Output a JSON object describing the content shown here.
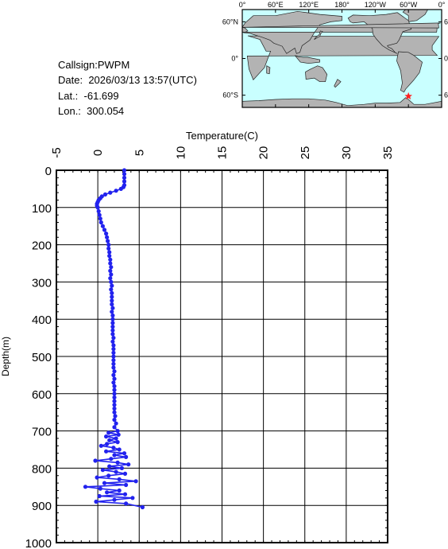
{
  "info": {
    "callsign_label": "Callsign:",
    "callsign": "PWPM",
    "date_label": "Date:",
    "date": "2026/03/13 13:57(UTC)",
    "lat_label": "Lat.:",
    "lat": "-61.699",
    "lon_label": "Lon.:",
    "lon": "300.054"
  },
  "map": {
    "lon_ticks": [
      "0°",
      "60°E",
      "120°E",
      "180°",
      "120°W",
      "60°W",
      "0°"
    ],
    "lat_ticks": [
      "60°N",
      "0°",
      "60°S"
    ],
    "ocean_color": "#c9ffff",
    "land_color": "#b3b3b3",
    "marker_color": "#ff2020",
    "marker_lat": -61.699,
    "marker_lon": 300.054
  },
  "chart_data": {
    "type": "line",
    "xlabel": "Temperature(C)",
    "ylabel": "Depth(m)",
    "xlim": [
      -5,
      35
    ],
    "ylim": [
      0,
      1000
    ],
    "y_inverted": true,
    "xticks": [
      -5,
      0,
      5,
      10,
      15,
      20,
      25,
      30,
      35
    ],
    "yticks": [
      0,
      100,
      200,
      300,
      400,
      500,
      600,
      700,
      800,
      900,
      1000
    ],
    "grid": true,
    "series_color": "#2222ee",
    "points": [
      [
        3.2,
        0
      ],
      [
        3.2,
        10
      ],
      [
        3.2,
        20
      ],
      [
        3.2,
        30
      ],
      [
        3.2,
        40
      ],
      [
        3.1,
        45
      ],
      [
        2.8,
        50
      ],
      [
        2.2,
        55
      ],
      [
        1.5,
        60
      ],
      [
        0.9,
        65
      ],
      [
        0.5,
        70
      ],
      [
        0.3,
        75
      ],
      [
        0.1,
        80
      ],
      [
        0.0,
        85
      ],
      [
        -0.1,
        90
      ],
      [
        -0.1,
        95
      ],
      [
        0.0,
        100
      ],
      [
        0.1,
        110
      ],
      [
        0.2,
        120
      ],
      [
        0.3,
        130
      ],
      [
        0.4,
        140
      ],
      [
        0.6,
        150
      ],
      [
        0.8,
        160
      ],
      [
        1.0,
        170
      ],
      [
        1.1,
        180
      ],
      [
        1.2,
        190
      ],
      [
        1.3,
        200
      ],
      [
        1.3,
        210
      ],
      [
        1.4,
        220
      ],
      [
        1.4,
        230
      ],
      [
        1.5,
        240
      ],
      [
        1.5,
        250
      ],
      [
        1.6,
        260
      ],
      [
        1.5,
        270
      ],
      [
        1.6,
        280
      ],
      [
        1.5,
        290
      ],
      [
        1.6,
        300
      ],
      [
        1.7,
        310
      ],
      [
        1.6,
        320
      ],
      [
        1.7,
        330
      ],
      [
        1.7,
        340
      ],
      [
        1.7,
        350
      ],
      [
        1.7,
        360
      ],
      [
        1.8,
        370
      ],
      [
        1.7,
        380
      ],
      [
        1.8,
        390
      ],
      [
        1.8,
        400
      ],
      [
        1.8,
        410
      ],
      [
        1.8,
        420
      ],
      [
        1.8,
        430
      ],
      [
        1.8,
        440
      ],
      [
        1.9,
        450
      ],
      [
        1.8,
        460
      ],
      [
        1.9,
        470
      ],
      [
        1.9,
        480
      ],
      [
        1.9,
        490
      ],
      [
        1.9,
        500
      ],
      [
        1.9,
        510
      ],
      [
        1.9,
        520
      ],
      [
        1.9,
        530
      ],
      [
        2.0,
        540
      ],
      [
        1.9,
        550
      ],
      [
        2.0,
        560
      ],
      [
        1.9,
        570
      ],
      [
        2.0,
        580
      ],
      [
        2.0,
        590
      ],
      [
        2.0,
        600
      ],
      [
        2.0,
        610
      ],
      [
        2.0,
        620
      ],
      [
        2.0,
        630
      ],
      [
        2.0,
        640
      ],
      [
        2.0,
        650
      ],
      [
        2.1,
        660
      ],
      [
        2.0,
        670
      ],
      [
        2.2,
        680
      ],
      [
        2.0,
        690
      ],
      [
        2.4,
        700
      ],
      [
        1.3,
        705
      ],
      [
        2.5,
        710
      ],
      [
        1.0,
        715
      ],
      [
        2.2,
        720
      ],
      [
        1.4,
        725
      ],
      [
        2.4,
        730
      ],
      [
        1.1,
        735
      ],
      [
        0.4,
        740
      ],
      [
        1.9,
        745
      ],
      [
        2.6,
        750
      ],
      [
        1.0,
        755
      ],
      [
        3.2,
        760
      ],
      [
        2.0,
        765
      ],
      [
        3.4,
        770
      ],
      [
        1.6,
        775
      ],
      [
        -0.3,
        780
      ],
      [
        2.4,
        785
      ],
      [
        3.7,
        790
      ],
      [
        1.4,
        795
      ],
      [
        2.9,
        800
      ],
      [
        0.6,
        805
      ],
      [
        2.2,
        810
      ],
      [
        3.3,
        815
      ],
      [
        1.3,
        820
      ],
      [
        -0.1,
        825
      ],
      [
        2.6,
        830
      ],
      [
        4.6,
        835
      ],
      [
        0.8,
        840
      ],
      [
        3.4,
        845
      ],
      [
        -1.5,
        850
      ],
      [
        0.3,
        855
      ],
      [
        2.6,
        860
      ],
      [
        1.1,
        865
      ],
      [
        3.3,
        870
      ],
      [
        0.2,
        875
      ],
      [
        4.2,
        880
      ],
      [
        2.0,
        885
      ],
      [
        -0.2,
        890
      ],
      [
        3.4,
        895
      ],
      [
        5.4,
        905
      ]
    ]
  }
}
